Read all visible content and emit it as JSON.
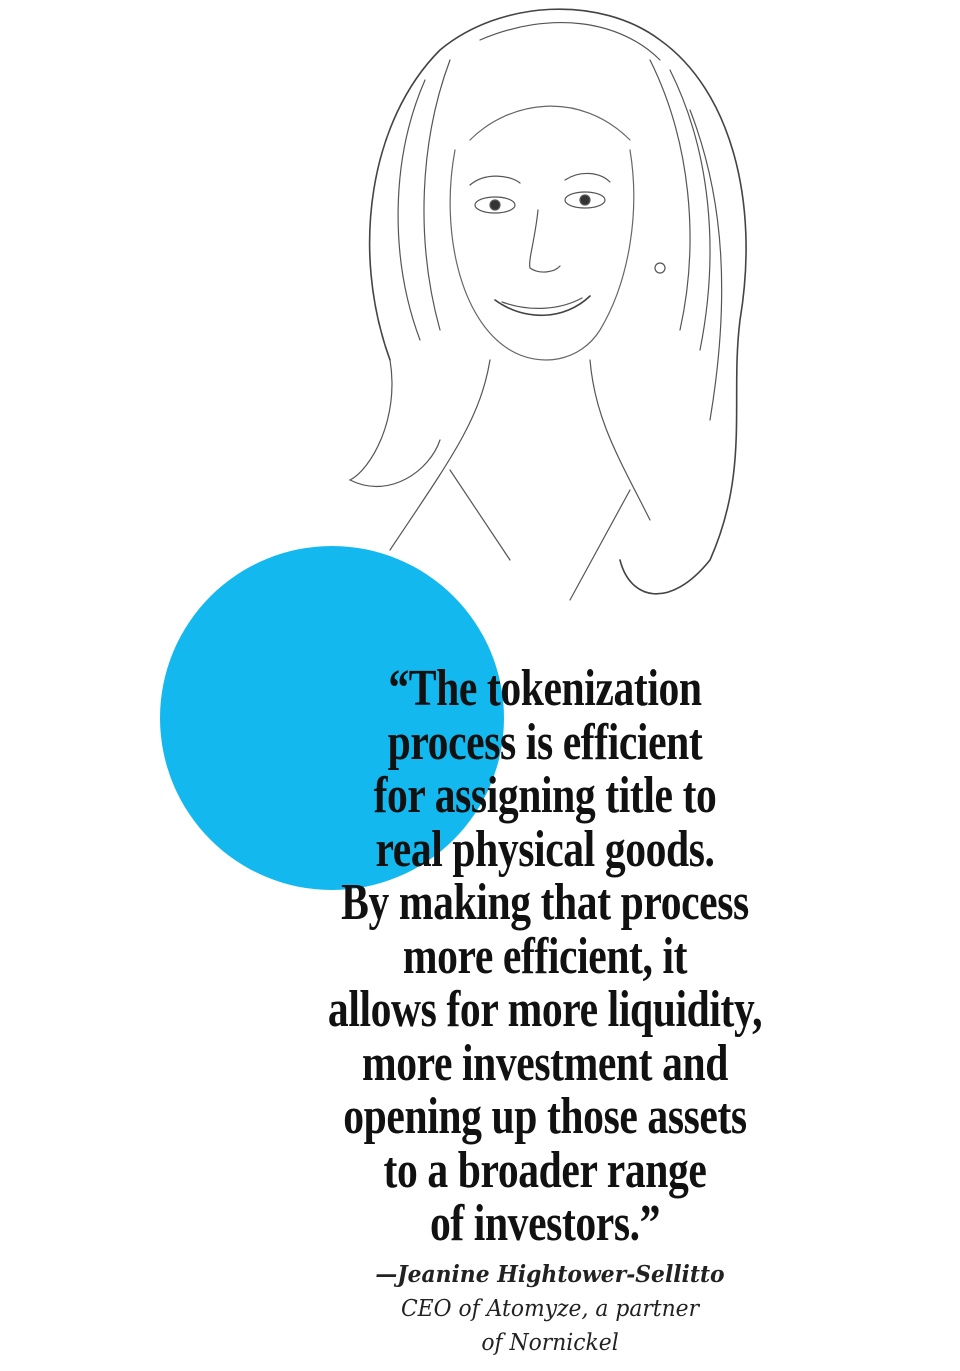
{
  "quote": {
    "lines": [
      "“The tokenization",
      "process is efficient",
      "for assigning title to",
      "real physical goods.",
      "By making that process",
      "more efficient, it",
      "allows for more liquidity,",
      "more investment and",
      "opening up those assets",
      "to a broader range",
      "of investors.”"
    ]
  },
  "attribution": {
    "name": "—Jeanine Hightower-Sellitto",
    "title_line1": "CEO of Atomyze, a partner",
    "title_line2": "of Nornickel"
  },
  "colors": {
    "accent_circle": "#13b9ee",
    "text": "#111111"
  }
}
